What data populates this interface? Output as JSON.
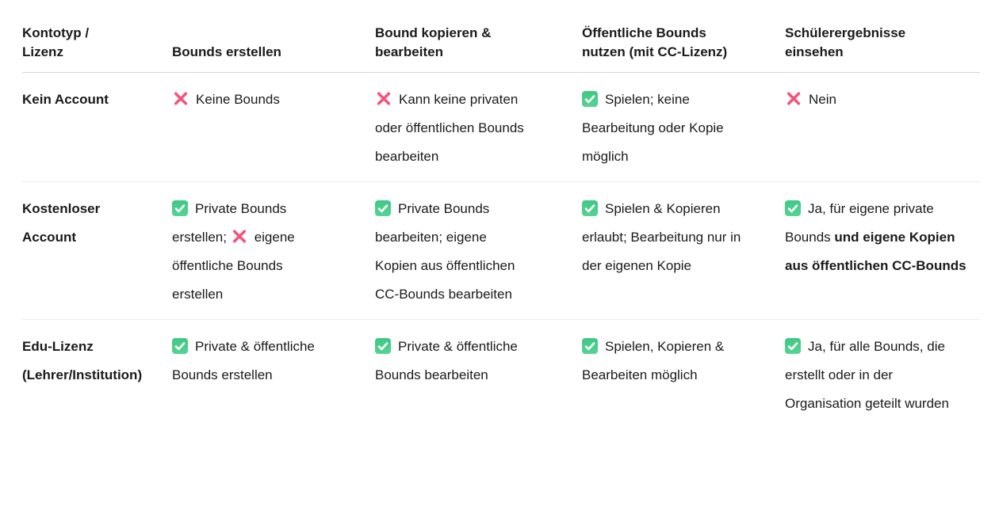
{
  "table": {
    "headers": [
      "Kontotyp / Lizenz",
      "Bounds erstellen",
      "Bound kopieren & bearbeiten",
      "Öffentliche Bounds nutzen (mit CC-Lizenz)",
      "Schülerergebnisse einsehen"
    ],
    "rows": [
      {
        "label": "Kein Account",
        "cells": [
          {
            "parts": [
              {
                "icon": "cross"
              },
              {
                "text": "Keine Bounds"
              }
            ]
          },
          {
            "parts": [
              {
                "icon": "cross"
              },
              {
                "text": "Kann keine privaten oder öffentlichen Bounds bearbeiten"
              }
            ]
          },
          {
            "parts": [
              {
                "icon": "check"
              },
              {
                "text": "Spielen; keine Bearbeitung oder Kopie möglich"
              }
            ]
          },
          {
            "parts": [
              {
                "icon": "cross"
              },
              {
                "text": "Nein"
              }
            ]
          }
        ]
      },
      {
        "label": "Kostenloser Account",
        "cells": [
          {
            "parts": [
              {
                "icon": "check"
              },
              {
                "text": "Private Bounds erstellen; "
              },
              {
                "icon": "cross"
              },
              {
                "text": "eigene öffentliche Bounds erstellen"
              }
            ]
          },
          {
            "parts": [
              {
                "icon": "check"
              },
              {
                "text": "Private Bounds bearbeiten; eigene Kopien aus öffentlichen CC-Bounds bearbeiten"
              }
            ]
          },
          {
            "parts": [
              {
                "icon": "check"
              },
              {
                "text": "Spielen & Kopieren erlaubt; Bearbeitung nur in der eigenen Kopie"
              }
            ]
          },
          {
            "parts": [
              {
                "icon": "check"
              },
              {
                "text": "Ja, für eigene private Bounds "
              },
              {
                "text": "und eigene Kopien aus öffentlichen CC-Bounds",
                "bold": true
              }
            ]
          }
        ]
      },
      {
        "label": "Edu-Lizenz (Lehrer/Institution)",
        "cells": [
          {
            "parts": [
              {
                "icon": "check"
              },
              {
                "text": "Private & öffentliche Bounds erstellen"
              }
            ]
          },
          {
            "parts": [
              {
                "icon": "check"
              },
              {
                "text": "Private & öffentliche Bounds bearbeiten"
              }
            ]
          },
          {
            "parts": [
              {
                "icon": "check"
              },
              {
                "text": "Spielen, Kopieren & Bearbeiten möglich"
              }
            ]
          },
          {
            "parts": [
              {
                "icon": "check"
              },
              {
                "text": "Ja, für alle Bounds, die erstellt oder in der Organisation geteilt wurden"
              }
            ]
          }
        ]
      }
    ]
  },
  "icons": {
    "check": "check-icon",
    "cross": "cross-icon"
  },
  "colors": {
    "check_green": "#4fce8e",
    "check_mark_white": "#ffffff",
    "cross_pink": "#f2547c",
    "text": "#1a1a1a",
    "divider_header": "#d5d5d5",
    "divider_row": "#ebebeb",
    "background": "#ffffff"
  }
}
